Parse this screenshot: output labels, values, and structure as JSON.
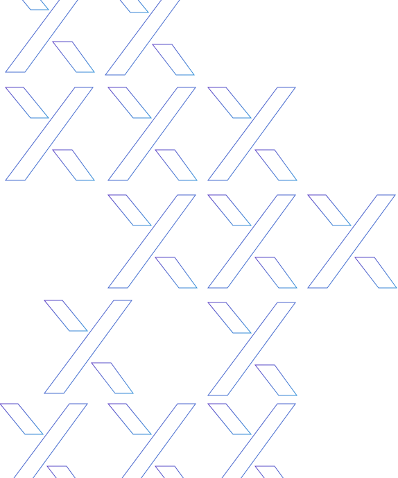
{
  "pattern": {
    "motif": "x-logo-icon",
    "count": 14,
    "stroke_gradient": {
      "start": "#5b3fc4",
      "end": "#2f8fd8"
    },
    "background": "#ffffff"
  }
}
